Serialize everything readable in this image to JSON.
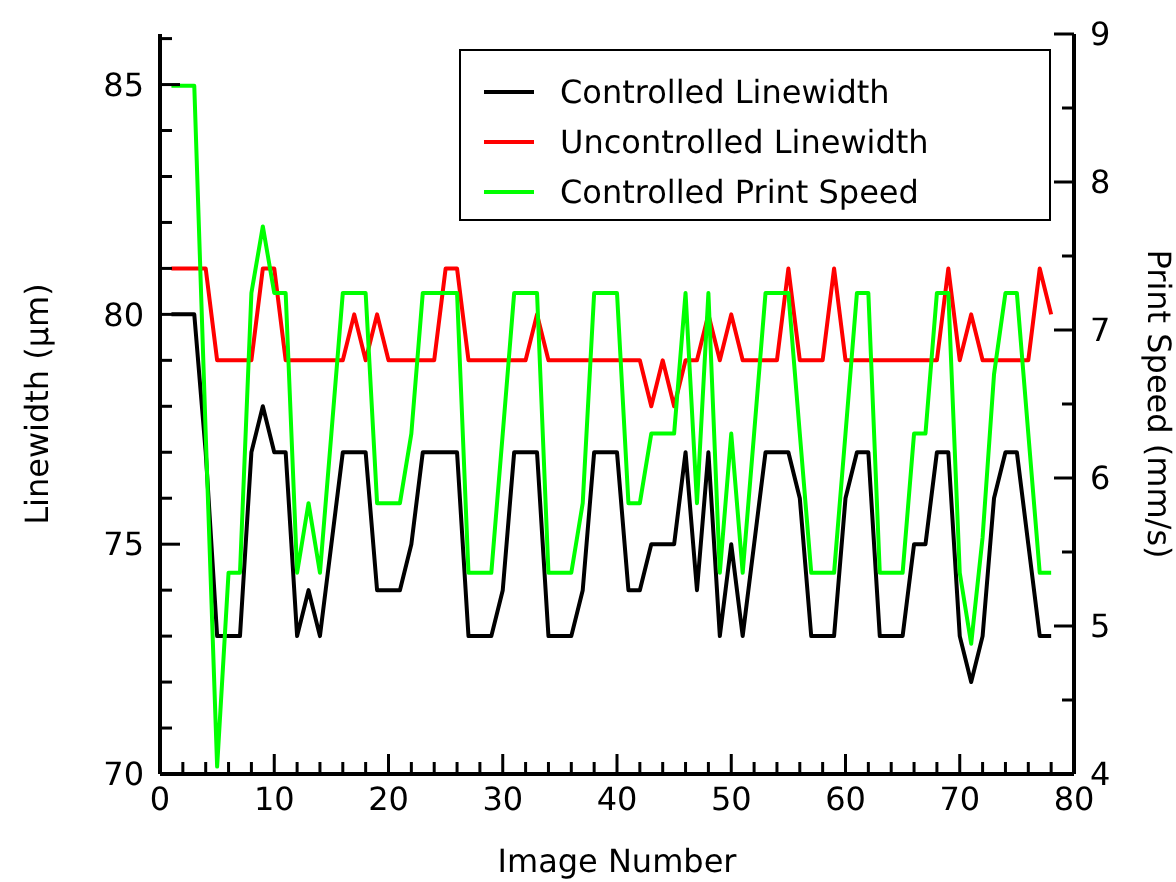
{
  "chart_data": {
    "type": "line",
    "xlabel": "Image Number",
    "ylabel": "Linewidth (µm)",
    "y2label": "Print Speed (mm/s)",
    "x": [
      1,
      2,
      3,
      4,
      5,
      6,
      7,
      8,
      9,
      10,
      11,
      12,
      13,
      14,
      15,
      16,
      17,
      18,
      19,
      20,
      21,
      22,
      23,
      24,
      25,
      26,
      27,
      28,
      29,
      30,
      31,
      32,
      33,
      34,
      35,
      36,
      37,
      38,
      39,
      40,
      41,
      42,
      43,
      44,
      45,
      46,
      47,
      48,
      49,
      50,
      51,
      52,
      53,
      54,
      55,
      56,
      57,
      58,
      59,
      60,
      61,
      62,
      63,
      64,
      65,
      66,
      67,
      68,
      69,
      70,
      71,
      72,
      73,
      74,
      75,
      76,
      77,
      78
    ],
    "series": [
      {
        "name": "Controlled Linewidth",
        "color": "#000000",
        "values": [
          80,
          80,
          80,
          77,
          73,
          73,
          73,
          77,
          78,
          77,
          77,
          73,
          74,
          73,
          75,
          77,
          77,
          77,
          74,
          74,
          74,
          75,
          77,
          77,
          77,
          77,
          73,
          73,
          73,
          74,
          77,
          77,
          77,
          73,
          73,
          73,
          74,
          77,
          77,
          77,
          74,
          74,
          75,
          75,
          75,
          77,
          74,
          77,
          73,
          75,
          73,
          75,
          77,
          77,
          77,
          76,
          73,
          73,
          73,
          76,
          77,
          77,
          73,
          73,
          73,
          75,
          75,
          77,
          77,
          73,
          72,
          73,
          76,
          77,
          77,
          75,
          73,
          73
        ]
      },
      {
        "name": "Uncontrolled Linewidth",
        "color": "#ff0000",
        "values": [
          81,
          81,
          81,
          81,
          79,
          79,
          79,
          79,
          81,
          81,
          79,
          79,
          79,
          79,
          79,
          79,
          80,
          79,
          80,
          79,
          79,
          79,
          79,
          79,
          81,
          81,
          79,
          79,
          79,
          79,
          79,
          79,
          80,
          79,
          79,
          79,
          79,
          79,
          79,
          79,
          79,
          79,
          78,
          79,
          78,
          79,
          79,
          80,
          79,
          80,
          79,
          79,
          79,
          79,
          81,
          79,
          79,
          79,
          81,
          79,
          79,
          79,
          79,
          79,
          79,
          79,
          79,
          79,
          81,
          79,
          80,
          79,
          79,
          79,
          79,
          79,
          81,
          80
        ]
      },
      {
        "name": "Controlled Print Speed",
        "color": "#00ff00",
        "axis": "y2",
        "values": [
          8.65,
          8.65,
          8.65,
          6.3,
          4.05,
          5.36,
          5.36,
          7.25,
          7.7,
          7.25,
          7.25,
          5.36,
          5.83,
          5.36,
          6.3,
          7.25,
          7.25,
          7.25,
          5.83,
          5.83,
          5.83,
          6.3,
          7.25,
          7.25,
          7.25,
          7.25,
          5.36,
          5.36,
          5.36,
          6.3,
          7.25,
          7.25,
          7.25,
          5.36,
          5.36,
          5.36,
          5.83,
          7.25,
          7.25,
          7.25,
          5.83,
          5.83,
          6.3,
          6.3,
          6.3,
          7.25,
          5.83,
          7.25,
          5.36,
          6.3,
          5.36,
          6.3,
          7.25,
          7.25,
          7.25,
          6.3,
          5.36,
          5.36,
          5.36,
          6.3,
          7.25,
          7.25,
          5.36,
          5.36,
          5.36,
          6.3,
          6.3,
          7.25,
          7.25,
          5.36,
          4.88,
          5.6,
          6.7,
          7.25,
          7.25,
          6.3,
          5.36,
          5.36
        ]
      }
    ],
    "xlim": [
      0,
      80
    ],
    "ylim": [
      70,
      86.1
    ],
    "y2lim": [
      4,
      9
    ],
    "xticks": [
      0,
      {
        "value": 2,
        "label": null
      },
      {
        "value": 4,
        "label": null
      },
      {
        "value": 6,
        "label": null
      },
      {
        "value": 8,
        "label": null
      },
      10,
      {
        "value": 12,
        "label": null
      },
      {
        "value": 14,
        "label": null
      },
      {
        "value": 16,
        "label": null
      },
      {
        "value": 18,
        "label": null
      },
      20,
      {
        "value": 22,
        "label": null
      },
      {
        "value": 24,
        "label": null
      },
      {
        "value": 26,
        "label": null
      },
      {
        "value": 28,
        "label": null
      },
      30,
      {
        "value": 32,
        "label": null
      },
      {
        "value": 34,
        "label": null
      },
      {
        "value": 36,
        "label": null
      },
      {
        "value": 38,
        "label": null
      },
      40,
      {
        "value": 42,
        "label": null
      },
      {
        "value": 44,
        "label": null
      },
      {
        "value": 46,
        "label": null
      },
      {
        "value": 48,
        "label": null
      },
      50,
      {
        "value": 52,
        "label": null
      },
      {
        "value": 54,
        "label": null
      },
      {
        "value": 56,
        "label": null
      },
      {
        "value": 58,
        "label": null
      },
      60,
      {
        "value": 62,
        "label": null
      },
      {
        "value": 64,
        "label": null
      },
      {
        "value": 66,
        "label": null
      },
      {
        "value": 68,
        "label": null
      },
      70,
      {
        "value": 72,
        "label": null
      },
      {
        "value": 74,
        "label": null
      },
      {
        "value": 76,
        "label": null
      },
      {
        "value": 78,
        "label": null
      },
      80
    ],
    "yticks": [
      70,
      {
        "value": 71,
        "label": null
      },
      {
        "value": 72,
        "label": null
      },
      {
        "value": 73,
        "label": null
      },
      {
        "value": 74,
        "label": null
      },
      75,
      {
        "value": 76,
        "label": null
      },
      {
        "value": 77,
        "label": null
      },
      {
        "value": 78,
        "label": null
      },
      {
        "value": 79,
        "label": null
      },
      80,
      {
        "value": 81,
        "label": null
      },
      {
        "value": 82,
        "label": null
      },
      {
        "value": 83,
        "label": null
      },
      {
        "value": 84,
        "label": null
      },
      85,
      {
        "value": 86,
        "label": null
      }
    ],
    "y2ticks": [
      4,
      {
        "value": 4.5,
        "label": null
      },
      5,
      {
        "value": 5.5,
        "label": null
      },
      6,
      {
        "value": 6.5,
        "label": null
      },
      7,
      {
        "value": 7.5,
        "label": null
      },
      8,
      {
        "value": 8.5,
        "label": null
      },
      9
    ],
    "legend": "top right",
    "grid": false,
    "line_style": "solid"
  }
}
